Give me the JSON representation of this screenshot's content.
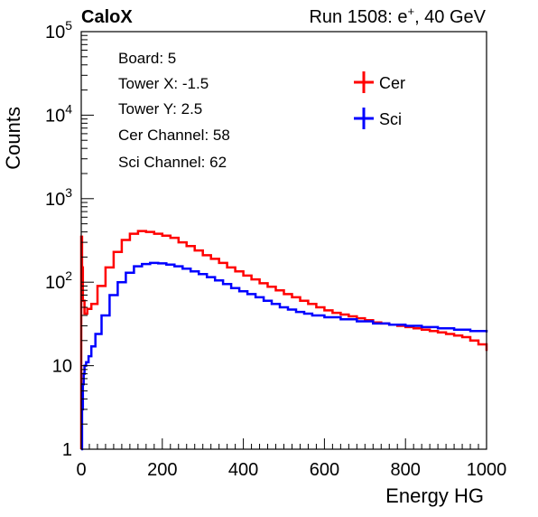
{
  "header": {
    "experiment": "CaloX",
    "run_label": "Run 1508: e",
    "run_sup": "+",
    "run_suffix": ", 40 GeV"
  },
  "info": {
    "lines": [
      "Board: 5",
      "Tower X: -1.5",
      "Tower Y: 2.5",
      "Cer Channel: 58",
      "Sci Channel: 62"
    ]
  },
  "chart_data": {
    "type": "line",
    "title": "",
    "xlabel": "Energy HG",
    "ylabel": "Counts",
    "xlim": [
      0,
      1000
    ],
    "ylim": [
      1,
      100000
    ],
    "y_scale": "log",
    "x_ticks": [
      0,
      200,
      400,
      600,
      800,
      1000
    ],
    "y_ticks": [
      1,
      10,
      100,
      1000,
      10000,
      100000
    ],
    "y_tick_labels": [
      {
        "base": "1",
        "exp": ""
      },
      {
        "base": "10",
        "exp": ""
      },
      {
        "base": "10",
        "exp": "2"
      },
      {
        "base": "10",
        "exp": "3"
      },
      {
        "base": "10",
        "exp": "4"
      },
      {
        "base": "10",
        "exp": "5"
      }
    ],
    "grid": false,
    "legend": "top-right",
    "series": [
      {
        "name": "Cer",
        "color": "#ff0000",
        "x": [
          0,
          2,
          4,
          8,
          15,
          25,
          40,
          60,
          80,
          100,
          120,
          140,
          160,
          180,
          200,
          220,
          240,
          260,
          280,
          300,
          320,
          340,
          360,
          380,
          400,
          420,
          440,
          460,
          480,
          500,
          520,
          540,
          560,
          580,
          600,
          620,
          640,
          660,
          680,
          700,
          720,
          740,
          760,
          780,
          800,
          820,
          840,
          860,
          880,
          900,
          920,
          940,
          960,
          980,
          1000
        ],
        "y": [
          350,
          150,
          60,
          42,
          48,
          55,
          90,
          150,
          230,
          320,
          380,
          410,
          400,
          380,
          360,
          340,
          300,
          270,
          240,
          210,
          190,
          170,
          150,
          135,
          120,
          108,
          97,
          88,
          80,
          72,
          66,
          60,
          55,
          50,
          46,
          43,
          41,
          39,
          37,
          35,
          33,
          32,
          31,
          30,
          29,
          28,
          27,
          26,
          25,
          24,
          23,
          22,
          20,
          18,
          15
        ]
      },
      {
        "name": "Sci",
        "color": "#0000ff",
        "x": [
          0,
          2,
          4,
          6,
          8,
          12,
          18,
          25,
          35,
          50,
          70,
          90,
          110,
          130,
          150,
          170,
          190,
          210,
          230,
          250,
          270,
          290,
          310,
          330,
          350,
          370,
          390,
          410,
          430,
          450,
          470,
          490,
          510,
          530,
          550,
          570,
          600,
          640,
          680,
          720,
          760,
          800,
          840,
          880,
          920,
          960,
          1000
        ],
        "y": [
          1,
          3,
          6,
          8,
          10,
          11,
          13,
          17,
          24,
          40,
          70,
          100,
          130,
          155,
          165,
          170,
          168,
          162,
          155,
          145,
          135,
          125,
          115,
          105,
          95,
          85,
          78,
          72,
          66,
          60,
          55,
          50,
          47,
          44,
          42,
          40,
          38,
          36,
          34,
          32,
          31,
          30,
          29,
          28,
          27,
          26,
          25
        ]
      }
    ]
  }
}
